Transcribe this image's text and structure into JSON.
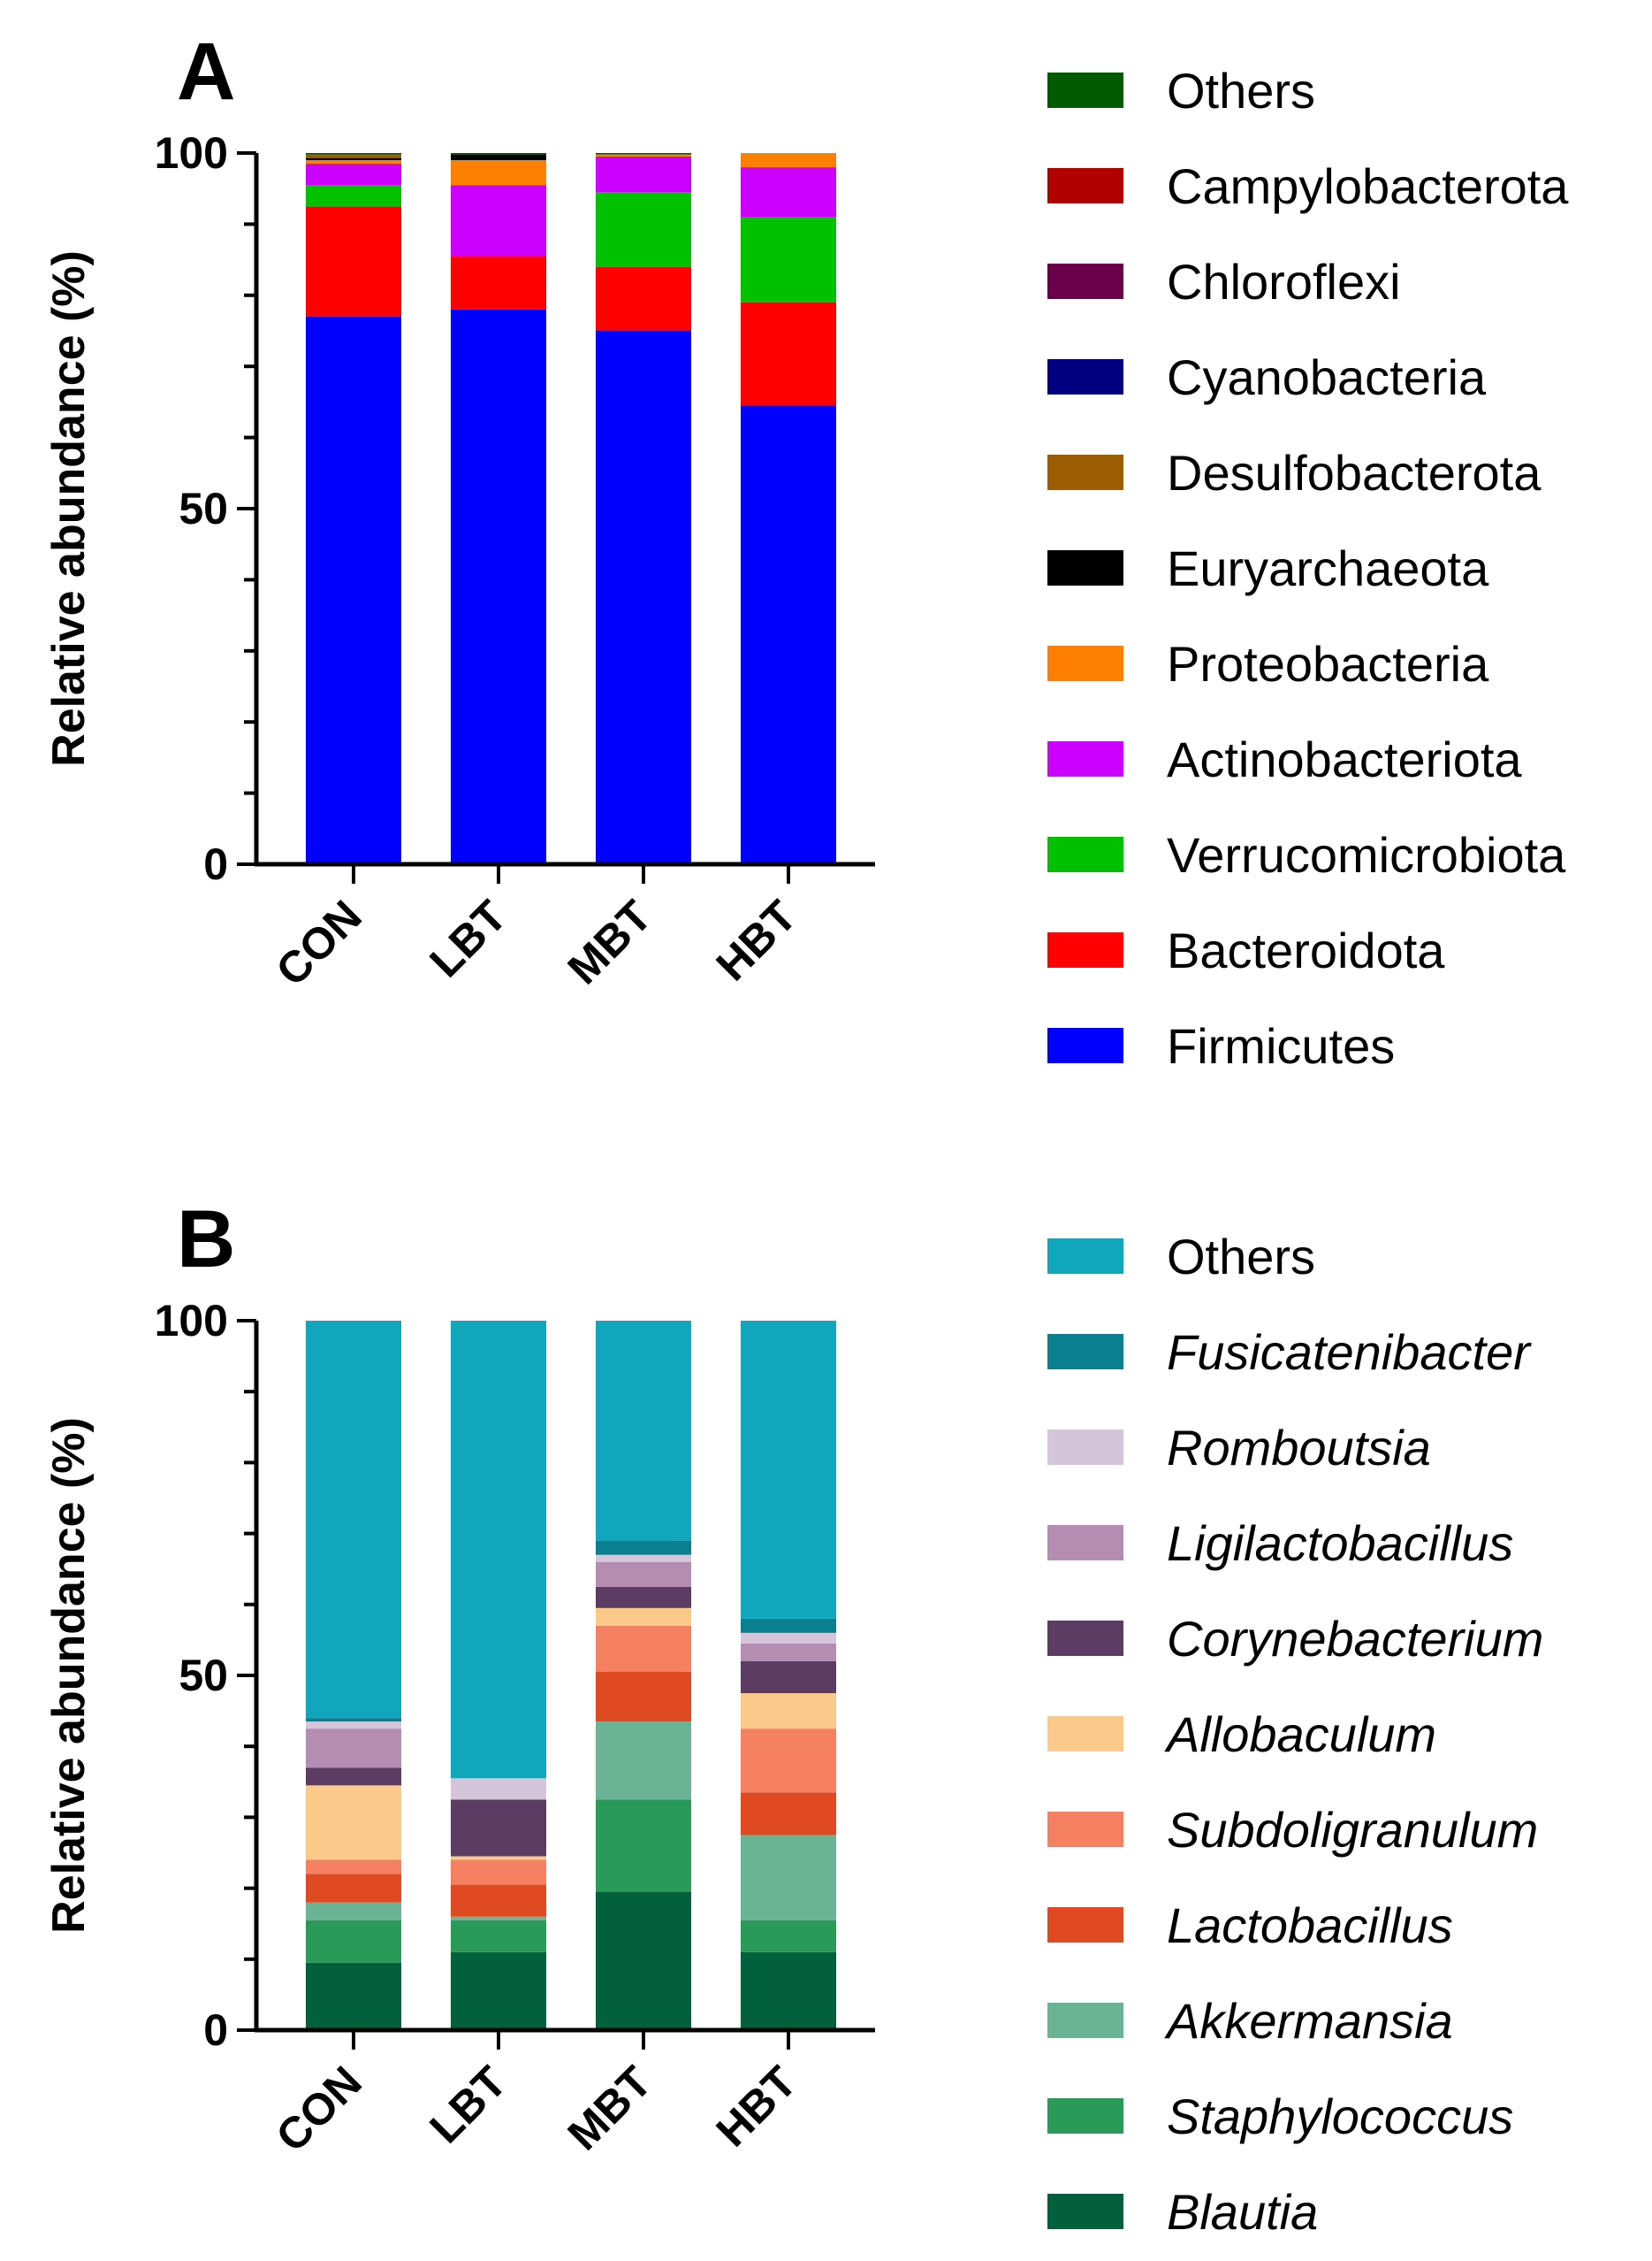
{
  "chart_data": [
    {
      "panel": "A",
      "type": "bar",
      "stacked": true,
      "xlabel": "",
      "ylabel": "Relative abundance (%)",
      "ylim": [
        0,
        100
      ],
      "yticks": [
        0,
        50,
        100
      ],
      "categories": [
        "CON",
        "LBT",
        "MBT",
        "HBT"
      ],
      "legend_italic": false,
      "series": [
        {
          "name": "Firmicutes",
          "color": "#0000ff",
          "values": [
            77,
            78,
            75,
            64.5
          ]
        },
        {
          "name": "Bacteroidota",
          "color": "#ff0000",
          "values": [
            15.5,
            7.5,
            9,
            14.5
          ]
        },
        {
          "name": "Verrucomicrobiota",
          "color": "#00c000",
          "values": [
            3,
            0,
            10.5,
            12
          ]
        },
        {
          "name": "Actinobacteriota",
          "color": "#cc00ff",
          "values": [
            3,
            10,
            5,
            7
          ]
        },
        {
          "name": "Proteobacteria",
          "color": "#ff8000",
          "values": [
            0.5,
            3.5,
            0.3,
            2
          ]
        },
        {
          "name": "Euryarchaeota",
          "color": "#000000",
          "values": [
            0.3,
            0.8,
            0,
            0
          ]
        },
        {
          "name": "Desulfobacterota",
          "color": "#9c5c00",
          "values": [
            0.5,
            0,
            0,
            0
          ]
        },
        {
          "name": "Cyanobacteria",
          "color": "#000080",
          "values": [
            0,
            0,
            0,
            0
          ]
        },
        {
          "name": "Chloroflexi",
          "color": "#6a004a",
          "values": [
            0,
            0,
            0,
            0
          ]
        },
        {
          "name": "Campylobacterota",
          "color": "#b00000",
          "values": [
            0,
            0,
            0,
            0
          ]
        },
        {
          "name": "Others",
          "color": "#005a00",
          "values": [
            0.2,
            0.2,
            0.2,
            0
          ]
        }
      ]
    },
    {
      "panel": "B",
      "type": "bar",
      "stacked": true,
      "xlabel": "",
      "ylabel": "Relative abundance (%)",
      "ylim": [
        0,
        100
      ],
      "yticks": [
        0,
        50,
        100
      ],
      "categories": [
        "CON",
        "LBT",
        "MBT",
        "HBT"
      ],
      "legend_italic": true,
      "series": [
        {
          "name": "Blautia",
          "color": "#03603d",
          "values": [
            9.5,
            11,
            19.5,
            11
          ]
        },
        {
          "name": "Staphylococcus",
          "color": "#2a9a58",
          "values": [
            6,
            4.5,
            13,
            4.5
          ]
        },
        {
          "name": "Akkermansia",
          "color": "#6ab495",
          "values": [
            2.5,
            0.5,
            11,
            12
          ]
        },
        {
          "name": "Lactobacillus",
          "color": "#e04a22",
          "values": [
            4,
            4.5,
            7,
            6
          ]
        },
        {
          "name": "Subdoligranulum",
          "color": "#f58062",
          "values": [
            2,
            3.5,
            6.5,
            9
          ]
        },
        {
          "name": "Allobaculum",
          "color": "#fbc98a",
          "values": [
            10.5,
            0.5,
            2.5,
            5
          ]
        },
        {
          "name": "Corynebacterium",
          "color": "#5c3c62",
          "values": [
            2.5,
            8,
            3,
            4.5
          ]
        },
        {
          "name": "Ligilactobacillus",
          "color": "#b58db3",
          "values": [
            5.5,
            0,
            3.5,
            2.5
          ]
        },
        {
          "name": "Romboutsia",
          "color": "#d5c5da",
          "values": [
            1,
            3,
            1,
            1.5
          ]
        },
        {
          "name": "Fusicatenibacter",
          "color": "#0a7f90",
          "values": [
            0.5,
            0,
            2,
            2
          ]
        },
        {
          "name": "Others",
          "color": "#10a7bd",
          "values": [
            56,
            64.5,
            31,
            42
          ]
        }
      ]
    }
  ]
}
